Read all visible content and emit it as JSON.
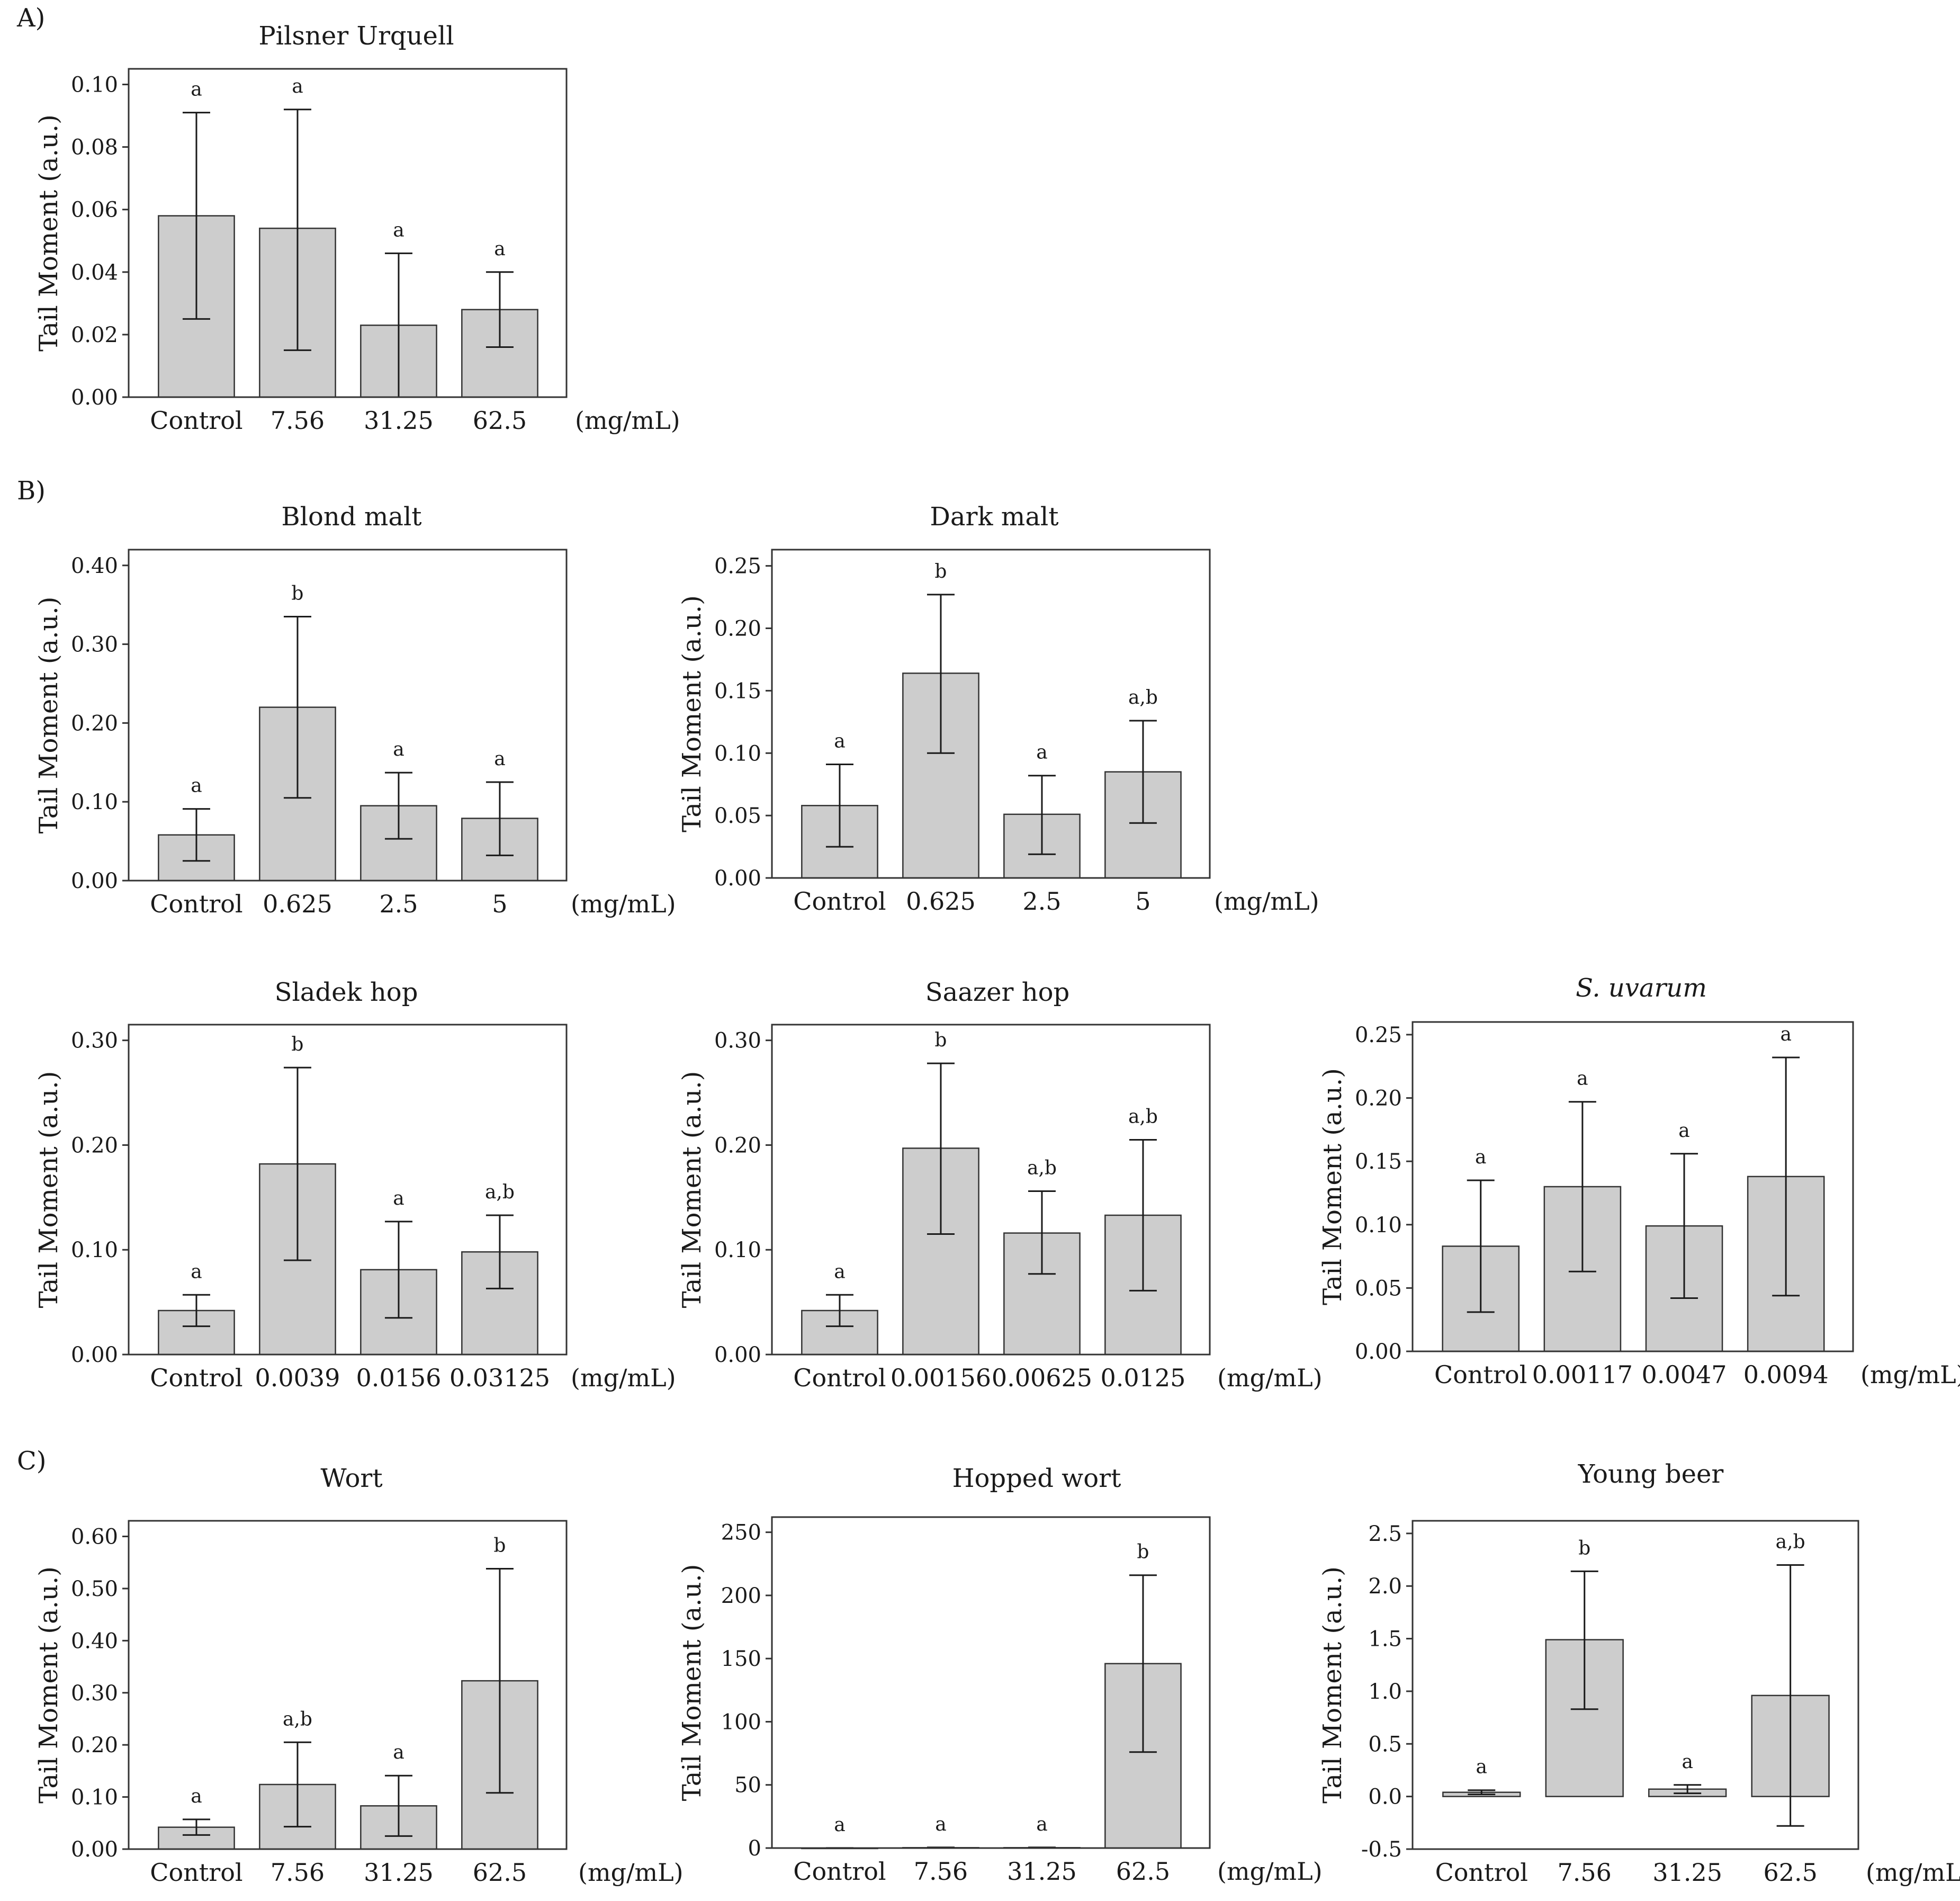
{
  "section_labels": [
    "A)",
    "B)",
    "C)"
  ],
  "chart_data": [
    {
      "type": "bar",
      "title": "Pilsner Urquell",
      "ylabel": "Tail Moment (a.u.)",
      "xlabel": "(mg/mL)",
      "categories": [
        "Control",
        "7.56",
        "31.25",
        "62.5"
      ],
      "values": [
        0.058,
        0.054,
        0.023,
        0.028
      ],
      "error_upper": [
        0.091,
        0.092,
        0.046,
        0.04
      ],
      "error_lower": [
        0.025,
        0.015,
        0.0,
        0.016
      ],
      "significance": [
        "a",
        "a",
        "a",
        "a"
      ],
      "ylim": [
        0,
        0.105
      ],
      "yticks": [
        0,
        0.02,
        0.04,
        0.06,
        0.08,
        0.1
      ],
      "ytick_labels": [
        "0.00",
        "0.02",
        "0.04",
        "0.06",
        "0.08",
        "0.10"
      ]
    },
    {
      "type": "bar",
      "title": "Blond malt",
      "ylabel": "Tail Moment (a.u.)",
      "xlabel": "(mg/mL)",
      "categories": [
        "Control",
        "0.625",
        "2.5",
        "5"
      ],
      "values": [
        0.058,
        0.22,
        0.095,
        0.079
      ],
      "error_upper": [
        0.091,
        0.335,
        0.137,
        0.125
      ],
      "error_lower": [
        0.025,
        0.105,
        0.053,
        0.032
      ],
      "significance": [
        "a",
        "b",
        "a",
        "a"
      ],
      "ylim": [
        0,
        0.42
      ],
      "yticks": [
        0,
        0.1,
        0.2,
        0.3,
        0.4
      ],
      "ytick_labels": [
        "0.00",
        "0.10",
        "0.20",
        "0.30",
        "0.40"
      ]
    },
    {
      "type": "bar",
      "title": "Dark malt",
      "ylabel": "Tail Moment (a.u.)",
      "xlabel": "(mg/mL)",
      "categories": [
        "Control",
        "0.625",
        "2.5",
        "5"
      ],
      "values": [
        0.058,
        0.164,
        0.051,
        0.085
      ],
      "error_upper": [
        0.091,
        0.227,
        0.082,
        0.126
      ],
      "error_lower": [
        0.025,
        0.1,
        0.019,
        0.044
      ],
      "significance": [
        "a",
        "b",
        "a",
        "a,b"
      ],
      "ylim": [
        0,
        0.263
      ],
      "yticks": [
        0,
        0.05,
        0.1,
        0.15,
        0.2,
        0.25
      ],
      "ytick_labels": [
        "0.00",
        "0.05",
        "0.10",
        "0.15",
        "0.20",
        "0.25"
      ]
    },
    {
      "type": "bar",
      "title": "Sladek hop",
      "ylabel": "Tail Moment (a.u.)",
      "xlabel": "(mg/mL)",
      "categories": [
        "Control",
        "0.0039",
        "0.0156",
        "0.03125"
      ],
      "values": [
        0.042,
        0.182,
        0.081,
        0.098
      ],
      "error_upper": [
        0.057,
        0.274,
        0.127,
        0.133
      ],
      "error_lower": [
        0.027,
        0.09,
        0.035,
        0.063
      ],
      "significance": [
        "a",
        "b",
        "a",
        "a,b"
      ],
      "ylim": [
        0,
        0.315
      ],
      "yticks": [
        0,
        0.1,
        0.2,
        0.3
      ],
      "ytick_labels": [
        "0.00",
        "0.10",
        "0.20",
        "0.30"
      ]
    },
    {
      "type": "bar",
      "title": "Saazer hop",
      "ylabel": "Tail Moment (a.u.)",
      "xlabel": "(mg/mL)",
      "categories": [
        "Control",
        "0.00156",
        "0.00625",
        "0.0125"
      ],
      "values": [
        0.042,
        0.197,
        0.116,
        0.133
      ],
      "error_upper": [
        0.057,
        0.278,
        0.156,
        0.205
      ],
      "error_lower": [
        0.027,
        0.115,
        0.077,
        0.061
      ],
      "significance": [
        "a",
        "b",
        "a,b",
        "a,b"
      ],
      "ylim": [
        0,
        0.315
      ],
      "yticks": [
        0,
        0.1,
        0.2,
        0.3
      ],
      "ytick_labels": [
        "0.00",
        "0.10",
        "0.20",
        "0.30"
      ]
    },
    {
      "type": "bar",
      "title": "S. uvarum",
      "ylabel": "Tail Moment (a.u.)",
      "xlabel": "(mg/mL)",
      "categories": [
        "Control",
        "0.00117",
        "0.0047",
        "0.0094"
      ],
      "values": [
        0.083,
        0.13,
        0.099,
        0.138
      ],
      "error_upper": [
        0.135,
        0.197,
        0.156,
        0.232
      ],
      "error_lower": [
        0.031,
        0.063,
        0.042,
        0.044
      ],
      "significance": [
        "a",
        "a",
        "a",
        "a"
      ],
      "ylim": [
        0,
        0.26
      ],
      "yticks": [
        0,
        0.05,
        0.1,
        0.15,
        0.2,
        0.25
      ],
      "ytick_labels": [
        "0.00",
        "0.05",
        "0.10",
        "0.15",
        "0.20",
        "0.25"
      ]
    },
    {
      "type": "bar",
      "title": "Wort",
      "ylabel": "Tail Moment (a.u.)",
      "xlabel": "(mg/mL)",
      "categories": [
        "Control",
        "7.56",
        "31.25",
        "62.5"
      ],
      "values": [
        0.042,
        0.124,
        0.083,
        0.323
      ],
      "error_upper": [
        0.057,
        0.205,
        0.141,
        0.538
      ],
      "error_lower": [
        0.027,
        0.043,
        0.025,
        0.108
      ],
      "significance": [
        "a",
        "a,b",
        "a",
        "b"
      ],
      "ylim": [
        0,
        0.63
      ],
      "yticks": [
        0,
        0.1,
        0.2,
        0.3,
        0.4,
        0.5,
        0.6
      ],
      "ytick_labels": [
        "0.00",
        "0.10",
        "0.20",
        "0.30",
        "0.40",
        "0.50",
        "0.60"
      ]
    },
    {
      "type": "bar",
      "title": "Hopped wort",
      "ylabel": "Tail Moment (a.u.)",
      "xlabel": "(mg/mL)",
      "categories": [
        "Control",
        "7.56",
        "31.25",
        "62.5"
      ],
      "values": [
        0.04,
        0.3,
        0.3,
        146
      ],
      "error_upper": [
        0.05,
        0.5,
        0.5,
        216
      ],
      "error_lower": [
        0.03,
        0.1,
        0.1,
        76
      ],
      "significance": [
        "a",
        "a",
        "a",
        "b"
      ],
      "ylim": [
        0,
        262
      ],
      "yticks": [
        0,
        50,
        100,
        150,
        200,
        250
      ],
      "ytick_labels": [
        "0",
        "50",
        "100",
        "150",
        "200",
        "250"
      ]
    },
    {
      "type": "bar",
      "title": "Young beer",
      "ylabel": "Tail Moment (a.u.)",
      "xlabel": "(mg/mL)",
      "categories": [
        "Control",
        "7.56",
        "31.25",
        "62.5"
      ],
      "values": [
        0.04,
        1.49,
        0.07,
        0.96
      ],
      "error_upper": [
        0.06,
        2.14,
        0.11,
        2.2
      ],
      "error_lower": [
        0.02,
        0.83,
        0.03,
        -0.28
      ],
      "significance": [
        "a",
        "b",
        "a",
        "a,b"
      ],
      "ylim": [
        -0.5,
        2.62
      ],
      "yticks": [
        -0.5,
        0,
        0.5,
        1,
        1.5,
        2,
        2.5
      ],
      "ytick_labels": [
        "-0.5",
        "0.0",
        "0.5",
        "1.0",
        "1.5",
        "2.0",
        "2.5"
      ]
    }
  ]
}
